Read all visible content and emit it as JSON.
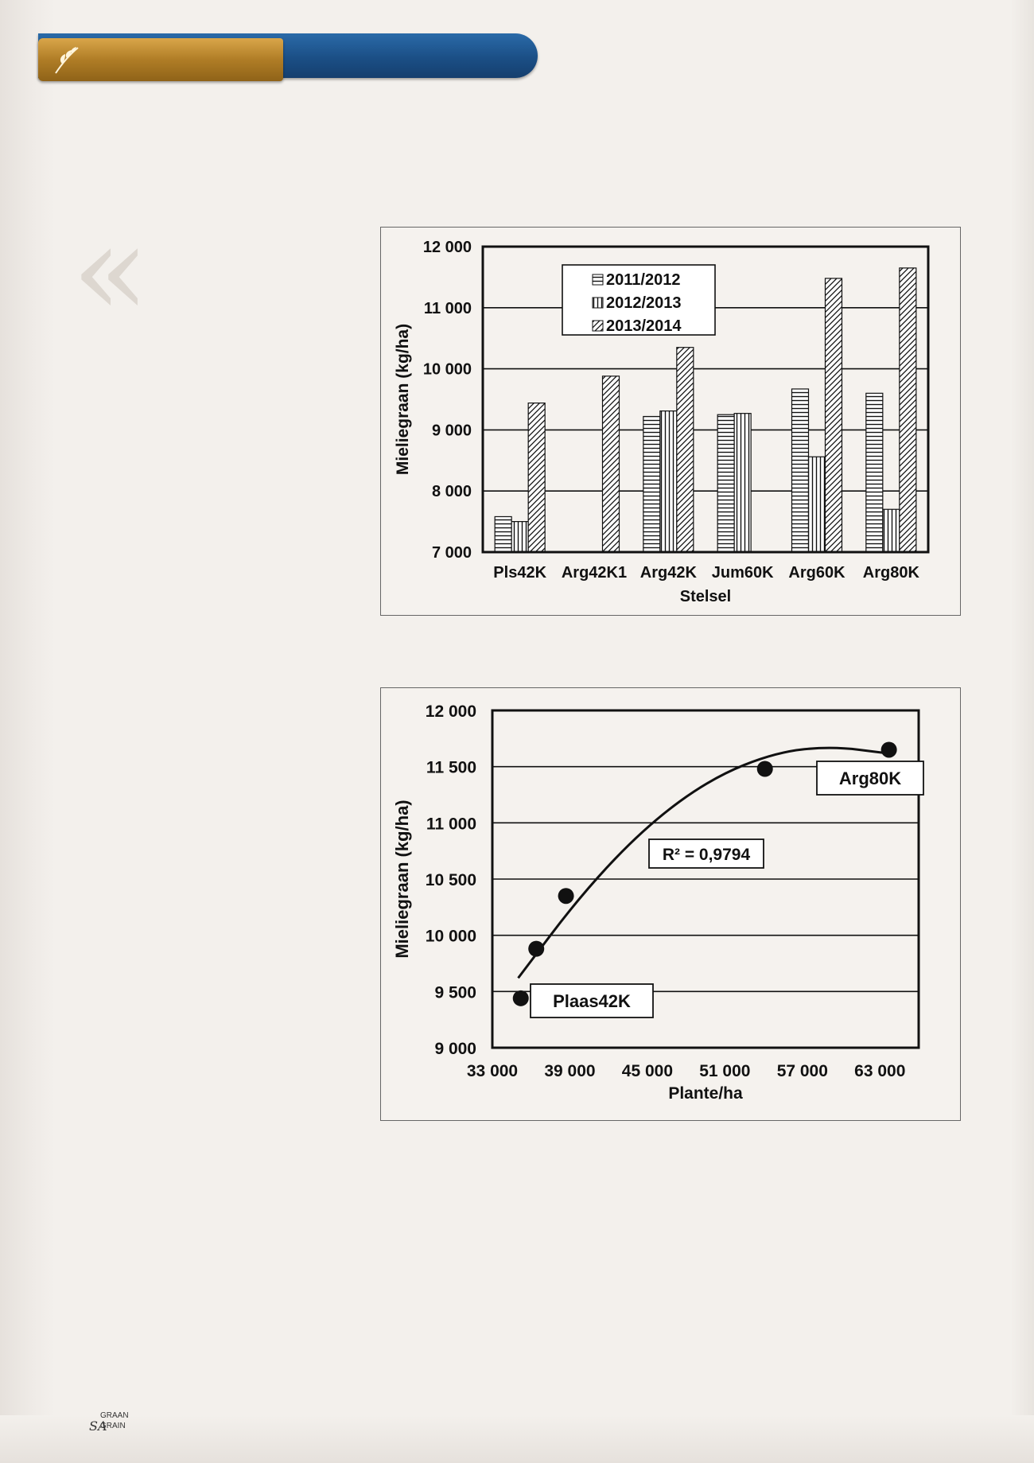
{
  "footer": {
    "sa": "SA",
    "graan": "GRAAN",
    "grain": "GRAIN"
  },
  "chart_data": [
    {
      "type": "bar",
      "title": "",
      "xlabel": "Stelsel",
      "ylabel": "Mieliegraan (kg/ha)",
      "ylim": [
        7000,
        12000
      ],
      "yticks": [
        "7 000",
        "8 000",
        "9 000",
        "10 000",
        "11 000",
        "12 000"
      ],
      "categories": [
        "Pls42K",
        "Arg42K1",
        "Arg42K",
        "Jum60K",
        "Arg60K",
        "Arg80K"
      ],
      "series": [
        {
          "name": "2011/2012",
          "values": [
            7580,
            null,
            9220,
            9250,
            9670,
            9600
          ]
        },
        {
          "name": "2012/2013",
          "values": [
            7500,
            null,
            9310,
            9270,
            8560,
            7700
          ]
        },
        {
          "name": "2013/2014",
          "values": [
            9440,
            9880,
            10350,
            null,
            11480,
            11650
          ]
        }
      ],
      "grid": true,
      "legend_position": "top-center"
    },
    {
      "type": "scatter",
      "title": "",
      "xlabel": "Plante/ha",
      "ylabel": "Mieliegraan (kg/ha)",
      "xlim": [
        33000,
        66000
      ],
      "ylim": [
        9000,
        12000
      ],
      "xticks": [
        "33 000",
        "39 000",
        "45 000",
        "51 000",
        "57 000",
        "63 000"
      ],
      "yticks": [
        "9 000",
        "9 500",
        "10 000",
        "10 500",
        "11 000",
        "11 500",
        "12 000"
      ],
      "points": [
        {
          "x": 35200,
          "y": 9440
        },
        {
          "x": 36400,
          "y": 9880
        },
        {
          "x": 38700,
          "y": 10350
        },
        {
          "x": 54100,
          "y": 11480
        },
        {
          "x": 63700,
          "y": 11650
        }
      ],
      "trendline": {
        "type": "polynomial",
        "curve": [
          [
            35000,
            9620
          ],
          [
            40000,
            10380
          ],
          [
            45000,
            10980
          ],
          [
            50000,
            11400
          ],
          [
            55000,
            11630
          ],
          [
            59300,
            11680
          ],
          [
            63500,
            11620
          ]
        ]
      },
      "annotations": [
        {
          "text": "Plaas42K"
        },
        {
          "text": "Arg80K"
        },
        {
          "text": "R² = 0,9794"
        }
      ],
      "grid": true
    }
  ]
}
